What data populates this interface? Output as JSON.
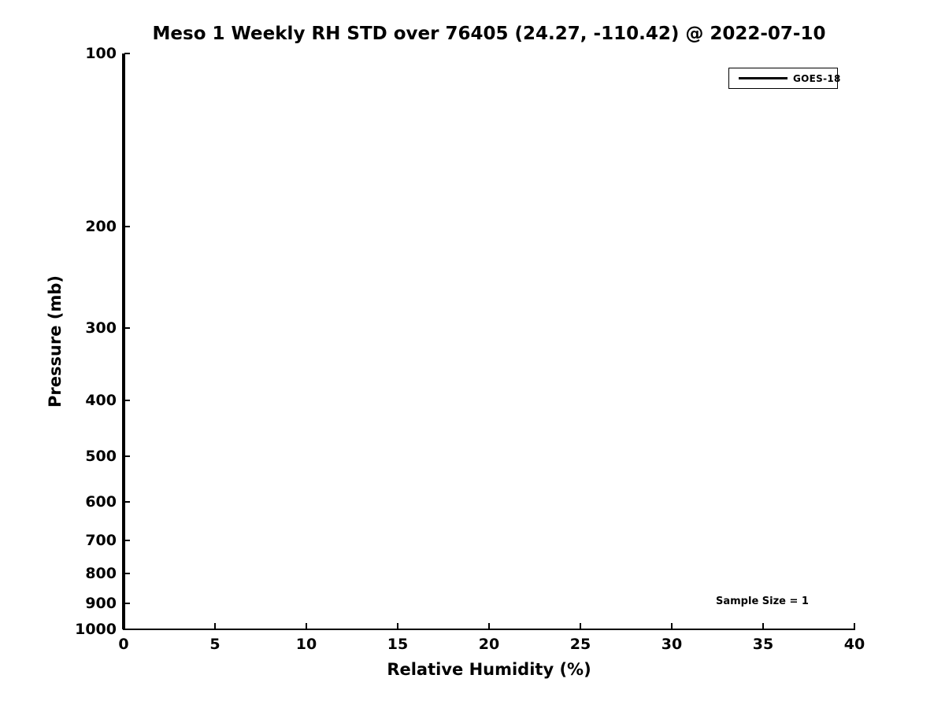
{
  "figure": {
    "background": "#ffffff",
    "text_color": "#000000"
  },
  "chart_data": {
    "type": "line",
    "title": "Meso 1 Weekly RH STD over 76405 (24.27, -110.42) @ 2022-07-10",
    "xlabel": "Relative Humidity (%)",
    "ylabel": "Pressure (mb)",
    "xlim": [
      0,
      40
    ],
    "ylim": [
      1000,
      100
    ],
    "yscale": "log",
    "y_inverted": true,
    "grid": false,
    "x_ticks": [
      0,
      5,
      10,
      15,
      20,
      25,
      30,
      35,
      40
    ],
    "y_ticks": [
      100,
      200,
      300,
      400,
      500,
      600,
      700,
      800,
      900,
      1000
    ],
    "legend": {
      "position": "upper right",
      "entries": [
        {
          "label": "GOES-18",
          "color": "#000000"
        }
      ]
    },
    "annotation": {
      "text": "Sample Size = 1"
    },
    "series": [
      {
        "name": "GOES-18",
        "color": "#000000",
        "points": [
          {
            "x": 0,
            "y": 100
          },
          {
            "x": 0,
            "y": 1000
          }
        ]
      }
    ]
  }
}
